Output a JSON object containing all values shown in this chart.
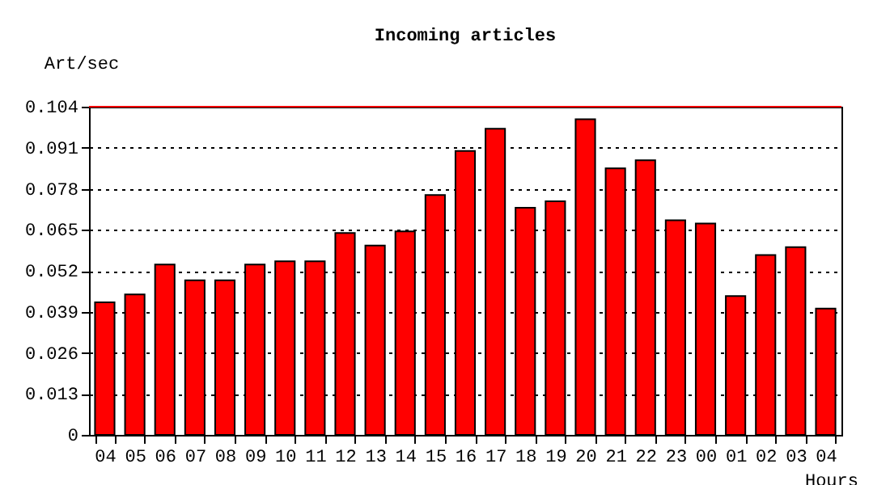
{
  "chart_data": {
    "type": "bar",
    "title": "Incoming articles",
    "xlabel": "Hours",
    "ylabel": "Art/sec",
    "categories": [
      "04",
      "05",
      "06",
      "07",
      "08",
      "09",
      "10",
      "11",
      "12",
      "13",
      "14",
      "15",
      "16",
      "17",
      "18",
      "19",
      "20",
      "21",
      "22",
      "23",
      "00",
      "01",
      "02",
      "03",
      "04"
    ],
    "values": [
      0.042,
      0.0445,
      0.054,
      0.049,
      0.049,
      0.054,
      0.055,
      0.055,
      0.064,
      0.06,
      0.0645,
      0.076,
      0.09,
      0.097,
      0.072,
      0.074,
      0.1,
      0.0845,
      0.087,
      0.068,
      0.067,
      0.044,
      0.057,
      0.0595,
      0.04
    ],
    "color": "#ff0000",
    "ylim": [
      0,
      0.104
    ],
    "yticks": [
      0,
      0.013,
      0.026,
      0.039,
      0.052,
      0.065,
      0.078,
      0.091,
      0.104
    ],
    "grid": "y",
    "line_style": "dotted",
    "ref_lines": [
      {
        "axis": "y",
        "value": 0.104,
        "color": "#ff0000"
      }
    ]
  }
}
